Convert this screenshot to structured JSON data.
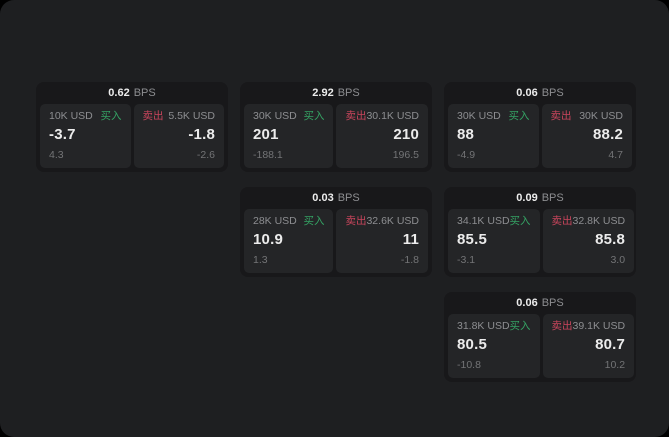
{
  "labels": {
    "buy": "买入",
    "sell": "卖出",
    "bps": "BPS"
  },
  "colors": {
    "panel_bg": "#1e1f21",
    "card_bg": "#18181a",
    "tile_bg": "#242527",
    "value_color": "#ececec",
    "label_color": "#8d8e91",
    "sub_color": "#737476",
    "buy_color": "#35a364",
    "sell_color": "#c9455c"
  },
  "cards": [
    {
      "spread_bps": "0.62",
      "buy": {
        "size": "10K USD",
        "price": "-3.7",
        "delta": "4.3"
      },
      "sell": {
        "size": "5.5K USD",
        "price": "-1.8",
        "delta": "-2.6"
      }
    },
    {
      "spread_bps": "2.92",
      "buy": {
        "size": "30K USD",
        "price": "201",
        "delta": "-188.1"
      },
      "sell": {
        "size": "30.1K USD",
        "price": "210",
        "delta": "196.5"
      }
    },
    {
      "spread_bps": "0.06",
      "buy": {
        "size": "30K USD",
        "price": "88",
        "delta": "-4.9"
      },
      "sell": {
        "size": "30K USD",
        "price": "88.2",
        "delta": "4.7"
      }
    },
    {
      "spread_bps": "0.03",
      "buy": {
        "size": "28K USD",
        "price": "10.9",
        "delta": "1.3"
      },
      "sell": {
        "size": "32.6K USD",
        "price": "11",
        "delta": "-1.8"
      }
    },
    {
      "spread_bps": "0.09",
      "buy": {
        "size": "34.1K USD",
        "price": "85.5",
        "delta": "-3.1"
      },
      "sell": {
        "size": "32.8K USD",
        "price": "85.8",
        "delta": "3.0"
      }
    },
    {
      "spread_bps": "0.06",
      "buy": {
        "size": "31.8K USD",
        "price": "80.5",
        "delta": "-10.8"
      },
      "sell": {
        "size": "39.1K USD",
        "price": "80.7",
        "delta": "10.2"
      }
    }
  ]
}
